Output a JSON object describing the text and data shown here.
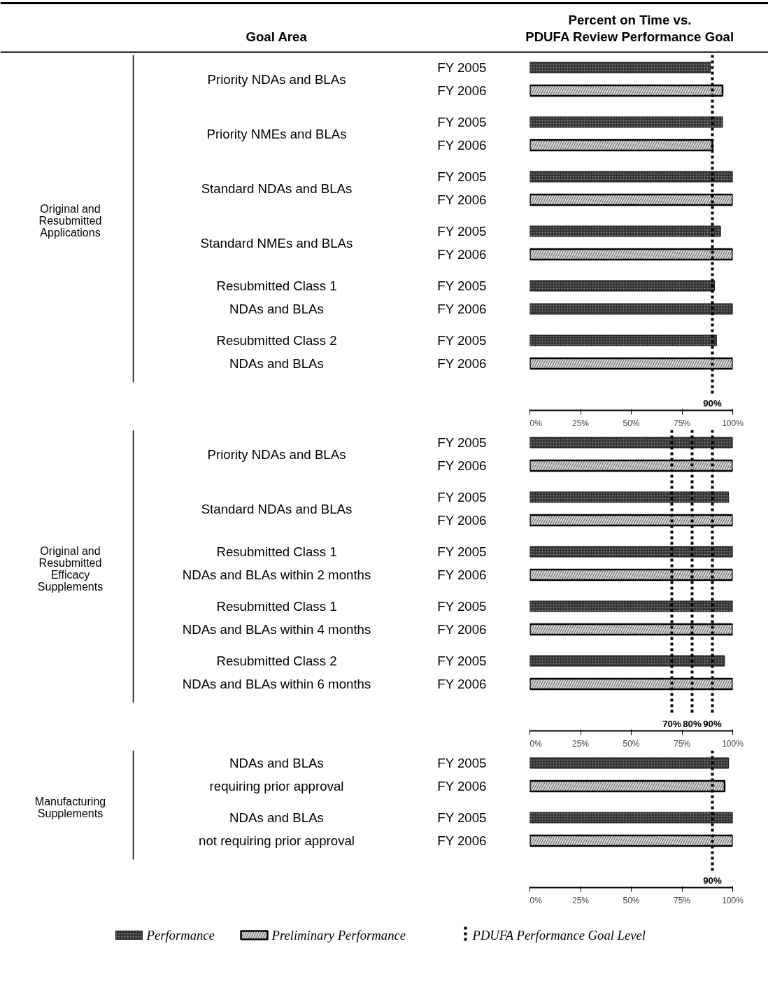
{
  "chart_data": [
    {
      "type": "bar",
      "orientation": "horizontal",
      "title": "Percent on Time vs.\nPDUFA Review Performance Goal",
      "ylabel": "Original and\nResubmitted\nApplications",
      "categories": [
        "FY 2005",
        "FY 2006",
        "FY 2005",
        "FY 2006",
        "FY 2005",
        "FY 2006",
        "FY 2005",
        "FY 2006",
        "FY 2005",
        "FY 2006",
        "FY 2005",
        "FY 2006"
      ],
      "series": [
        {
          "color": "#333333",
          "values": [
            89,
            null,
            95,
            null,
            100,
            null,
            94,
            null,
            91,
            100,
            92,
            null
          ]
        },
        {
          "color": "#d9d9d9",
          "values": [
            null,
            95,
            null,
            90,
            null,
            100,
            null,
            100,
            null,
            null,
            null,
            100
          ]
        }
      ],
      "annotations": [
        "Priority NDAs and BLAs",
        "Priority NMEs and BLAs",
        "Standard NDAs and BLAs",
        "Standard NMEs and BLAs",
        "Resubmitted Class 1\nNDAs and BLAs",
        "Resubmitted Class 2\nNDAs and BLAs",
        "Goal Area"
      ],
      "xlim": [
        0,
        100
      ],
      "xticks": [
        {
          "value": 0,
          "label": "0%"
        },
        {
          "value": 25,
          "label": "25%"
        },
        {
          "value": 50,
          "label": "50%"
        },
        {
          "value": 75,
          "label": "75%"
        },
        {
          "value": 100,
          "label": "100%"
        }
      ],
      "ref_lines": [
        {
          "axis": "x",
          "value": 90,
          "label": "90%",
          "color": "#000000",
          "line_style": "dotted"
        }
      ],
      "grid": false
    },
    {
      "type": "bar",
      "orientation": "horizontal",
      "ylabel": "Original and\nResubmitted\nEfficacy\nSupplements",
      "categories": [
        "FY 2005",
        "FY 2006",
        "FY 2005",
        "FY 2006",
        "FY 2005",
        "FY 2006",
        "FY 2005",
        "FY 2006",
        "FY 2005",
        "FY 2006"
      ],
      "series": [
        {
          "color": "#333333",
          "values": [
            100,
            null,
            98,
            null,
            100,
            null,
            100,
            null,
            96,
            null
          ]
        },
        {
          "color": "#d9d9d9",
          "values": [
            null,
            100,
            null,
            100,
            null,
            100,
            null,
            100,
            null,
            100
          ]
        }
      ],
      "annotations": [
        "Priority NDAs and BLAs",
        "Standard NDAs and BLAs",
        "Resubmitted Class 1\nNDAs and BLAs within 2 months",
        "Resubmitted Class 1\nNDAs and BLAs within 4 months",
        "Resubmitted Class 2\nNDAs and BLAs within 6 months"
      ],
      "xlim": [
        0,
        100
      ],
      "xticks": [
        {
          "value": 0,
          "label": "0%"
        },
        {
          "value": 25,
          "label": "25%"
        },
        {
          "value": 50,
          "label": "50%"
        },
        {
          "value": 75,
          "label": "75%"
        },
        {
          "value": 100,
          "label": "100%"
        }
      ],
      "ref_lines": [
        {
          "axis": "x",
          "value": 70,
          "label": "70%",
          "color": "#000000",
          "line_style": "dotted"
        },
        {
          "axis": "x",
          "value": 80,
          "label": "80%",
          "color": "#000000",
          "line_style": "dotted"
        },
        {
          "axis": "x",
          "value": 90,
          "label": "90%",
          "color": "#000000",
          "line_style": "dotted"
        }
      ],
      "grid": false
    },
    {
      "type": "bar",
      "orientation": "horizontal",
      "ylabel": "Manufacturing\nSupplements",
      "categories": [
        "FY 2005",
        "FY 2006",
        "FY 2005",
        "FY 2006"
      ],
      "series": [
        {
          "name": "Performance",
          "color": "#333333",
          "values": [
            98,
            null,
            100,
            null
          ]
        },
        {
          "name": "Preliminary Performance",
          "color": "#d9d9d9",
          "values": [
            null,
            96,
            null,
            100
          ]
        }
      ],
      "annotations": [
        "NDAs and BLAs\nrequiring prior approval",
        "NDAs and BLAs\nnot requiring prior approval",
        "PDUFA Performance Goal Level"
      ],
      "xlim": [
        0,
        100
      ],
      "xticks": [
        {
          "value": 0,
          "label": "0%"
        },
        {
          "value": 25,
          "label": "25%"
        },
        {
          "value": 50,
          "label": "50%"
        },
        {
          "value": 75,
          "label": "75%"
        },
        {
          "value": 100,
          "label": "100%"
        }
      ],
      "ref_lines": [
        {
          "axis": "x",
          "value": 90,
          "label": "90%",
          "color": "#000000",
          "line_style": "dotted"
        }
      ],
      "grid": false,
      "legend": "bottom"
    }
  ]
}
